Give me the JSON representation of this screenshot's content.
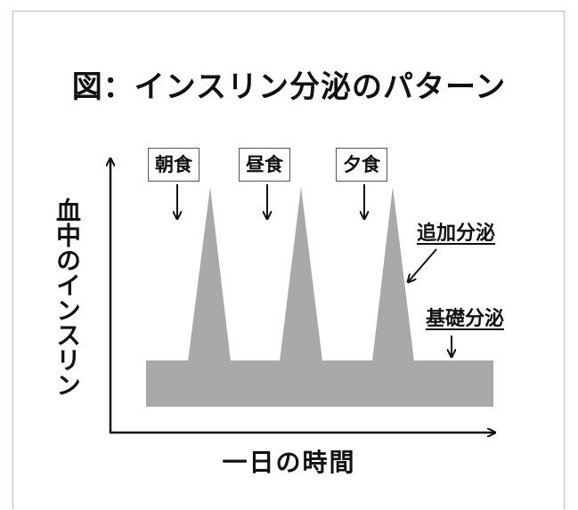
{
  "title": "図：インスリン分泌のパターン",
  "y_axis_label": "血中のインスリン",
  "x_axis_label": "一日の時間",
  "meals": [
    "朝食",
    "昼食",
    "夕食"
  ],
  "labels": {
    "bolus": "追加分泌",
    "basal": "基礎分泌"
  },
  "colors": {
    "fill": "#a9a9a9",
    "line": "#111111"
  }
}
